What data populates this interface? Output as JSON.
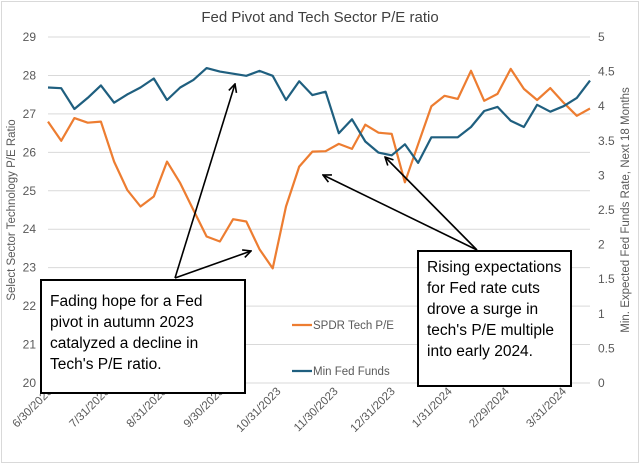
{
  "chart_data": {
    "type": "line",
    "title": "Fed Pivot and Tech Sector P/E ratio",
    "ylabel": "Select Sector Technology P/E Ratio",
    "y2label": "Min. Expected Fed Funds Rate, Next 18 Months",
    "ylim": [
      20,
      29
    ],
    "y2lim": [
      0,
      5
    ],
    "yticks": [
      "20",
      "21",
      "22",
      "23",
      "24",
      "25",
      "26",
      "27",
      "28",
      "29"
    ],
    "y2ticks": [
      "0",
      "0.5",
      "1",
      "1.5",
      "2",
      "2.5",
      "3",
      "3.5",
      "4",
      "4.5",
      "5"
    ],
    "xticks": [
      "6/30/2023",
      "7/31/2023",
      "8/31/2023",
      "9/30/2023",
      "10/31/2023",
      "11/30/2023",
      "12/31/2023",
      "1/31/2024",
      "2/29/2024",
      "3/31/2024"
    ],
    "x_start": "6/30/2023",
    "x_frequency": "weekly",
    "grid": true,
    "legend_position": "center-bottom",
    "series": [
      {
        "name": "SPDR Tech P/E",
        "axis": "left",
        "color": "#ed7d31",
        "values": [
          26.8,
          26.3,
          26.89,
          26.77,
          26.8,
          25.76,
          25.02,
          24.59,
          24.85,
          25.76,
          25.2,
          24.5,
          23.81,
          23.68,
          24.26,
          24.2,
          23.48,
          22.98,
          24.59,
          25.63,
          26.02,
          26.03,
          26.22,
          26.09,
          26.72,
          26.51,
          26.48,
          25.22,
          26.21,
          27.2,
          27.47,
          27.39,
          28.12,
          27.34,
          27.52,
          28.17,
          27.65,
          27.36,
          27.67,
          27.29,
          26.95,
          27.14
        ]
      },
      {
        "name": "Min Fed Funds",
        "axis": "right",
        "color": "#1f5f7f",
        "values": [
          4.27,
          4.26,
          3.96,
          4.12,
          4.3,
          4.05,
          4.17,
          4.27,
          4.4,
          4.09,
          4.27,
          4.38,
          4.55,
          4.5,
          4.47,
          4.44,
          4.51,
          4.44,
          4.09,
          4.36,
          4.16,
          4.21,
          3.61,
          3.81,
          3.49,
          3.33,
          3.29,
          3.45,
          3.18,
          3.55,
          3.55,
          3.55,
          3.7,
          3.93,
          3.99,
          3.79,
          3.7,
          4.02,
          3.92,
          4.0,
          4.12,
          4.37
        ]
      }
    ],
    "annotations": [
      "Fading hope for a Fed pivot in autumn 2023 catalyzed a decline in Tech's P/E ratio.",
      "Rising expectations for Fed rate cuts drove a surge in tech's P/E multiple into early 2024."
    ]
  }
}
